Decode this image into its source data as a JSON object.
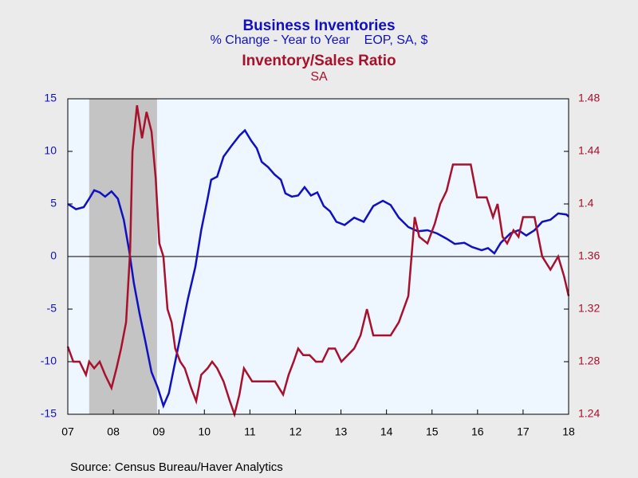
{
  "chart_data": {
    "type": "line",
    "series": [
      {
        "name": "Business Inventories",
        "subtitle": "% Change - Year to Year    EOP, SA, $",
        "color": "#1010c0",
        "axis": "y",
        "x": [
          2007.5,
          2007.68,
          2007.85,
          2007.97,
          2008.08,
          2008.2,
          2008.32,
          2008.46,
          2008.6,
          2008.73,
          2008.85,
          2008.95,
          2009.08,
          2009.2,
          2009.34,
          2009.48,
          2009.6,
          2009.72,
          2009.86,
          2010.0,
          2010.14,
          2010.3,
          2010.43,
          2010.57,
          2010.65,
          2010.78,
          2010.92,
          2011.09,
          2011.27,
          2011.39,
          2011.53,
          2011.65,
          2011.76,
          2011.9,
          2012.04,
          2012.18,
          2012.28,
          2012.42,
          2012.56,
          2012.7,
          2012.84,
          2012.98,
          2013.12,
          2013.26,
          2013.4,
          2013.58,
          2013.79,
          2014.0,
          2014.21,
          2014.42,
          2014.59,
          2014.77,
          2014.98,
          2015.19,
          2015.4,
          2015.61,
          2015.82,
          2016.0,
          2016.21,
          2016.38,
          2016.59,
          2016.73,
          2016.87,
          2017.01,
          2017.22,
          2017.4,
          2017.57,
          2017.75,
          2017.92,
          2018.1,
          2018.27,
          2018.45,
          2018.5
        ],
        "values": [
          5.0,
          4.5,
          4.7,
          5.5,
          6.3,
          6.1,
          5.7,
          6.2,
          5.5,
          3.5,
          0.5,
          -2.5,
          -5.5,
          -8,
          -11,
          -12.5,
          -14.2,
          -13,
          -10,
          -7,
          -4,
          -1,
          2.5,
          5.5,
          7.3,
          7.6,
          9.5,
          10.5,
          11.5,
          12,
          11,
          10.3,
          9.0,
          8.5,
          7.8,
          7.3,
          6.0,
          5.7,
          5.8,
          6.6,
          5.8,
          6.1,
          4.8,
          4.3,
          3.3,
          3.0,
          3.7,
          3.3,
          4.8,
          5.3,
          4.9,
          3.7,
          2.8,
          2.4,
          2.5,
          2.2,
          1.7,
          1.2,
          1.3,
          0.9,
          0.6,
          0.8,
          0.3,
          1.3,
          2.2,
          2.5,
          2.0,
          2.5,
          3.3,
          3.5,
          4.1,
          4.0,
          3.8
        ]
      },
      {
        "name": "Inventory/Sales Ratio",
        "subtitle": "SA",
        "color": "#a8102c",
        "axis": "y2",
        "x": [
          2007.5,
          2007.62,
          2007.76,
          2007.9,
          2007.97,
          2008.08,
          2008.2,
          2008.32,
          2008.46,
          2008.57,
          2008.67,
          2008.78,
          2008.87,
          2008.92,
          2009.02,
          2009.13,
          2009.23,
          2009.34,
          2009.43,
          2009.51,
          2009.6,
          2009.69,
          2009.78,
          2009.86,
          2009.97,
          2010.07,
          2010.21,
          2010.32,
          2010.43,
          2010.57,
          2010.67,
          2010.78,
          2010.92,
          2011.06,
          2011.16,
          2011.27,
          2011.37,
          2011.55,
          2011.7,
          2011.88,
          2012.05,
          2012.23,
          2012.35,
          2012.46,
          2012.56,
          2012.67,
          2012.81,
          2012.95,
          2013.09,
          2013.23,
          2013.37,
          2013.51,
          2013.65,
          2013.79,
          2013.93,
          2014.07,
          2014.21,
          2014.38,
          2014.59,
          2014.77,
          2014.98,
          2015.12,
          2015.22,
          2015.4,
          2015.56,
          2015.68,
          2015.82,
          2015.96,
          2016.14,
          2016.35,
          2016.49,
          2016.7,
          2016.84,
          2016.94,
          2017.05,
          2017.15,
          2017.29,
          2017.4,
          2017.5,
          2017.68,
          2017.75,
          2017.92,
          2018.1,
          2018.27,
          2018.4,
          2018.5
        ],
        "values": [
          1.2915,
          1.28,
          1.28,
          1.27,
          1.28,
          1.275,
          1.28,
          1.27,
          1.26,
          1.275,
          1.29,
          1.31,
          1.365,
          1.44,
          1.475,
          1.45,
          1.47,
          1.455,
          1.42,
          1.37,
          1.36,
          1.32,
          1.31,
          1.29,
          1.28,
          1.275,
          1.26,
          1.25,
          1.27,
          1.275,
          1.28,
          1.275,
          1.265,
          1.25,
          1.24,
          1.255,
          1.275,
          1.265,
          1.265,
          1.265,
          1.265,
          1.255,
          1.27,
          1.28,
          1.29,
          1.285,
          1.285,
          1.28,
          1.28,
          1.29,
          1.29,
          1.28,
          1.285,
          1.29,
          1.3,
          1.32,
          1.3,
          1.3,
          1.3,
          1.31,
          1.33,
          1.39,
          1.375,
          1.37,
          1.385,
          1.4,
          1.41,
          1.43,
          1.43,
          1.43,
          1.405,
          1.405,
          1.39,
          1.4,
          1.375,
          1.37,
          1.38,
          1.375,
          1.39,
          1.39,
          1.39,
          1.36,
          1.35,
          1.36,
          1.345,
          1.33
        ]
      }
    ],
    "xlim": [
      2007.5,
      2018.5
    ],
    "xticks": [
      {
        "value": 2007.5,
        "label": "07"
      },
      {
        "value": 2008.5,
        "label": "08"
      },
      {
        "value": 2009.5,
        "label": "09"
      },
      {
        "value": 2010.5,
        "label": "10"
      },
      {
        "value": 2011.5,
        "label": "11"
      },
      {
        "value": 2012.5,
        "label": "12"
      },
      {
        "value": 2013.5,
        "label": "13"
      },
      {
        "value": 2014.5,
        "label": "14"
      },
      {
        "value": 2015.5,
        "label": "15"
      },
      {
        "value": 2016.5,
        "label": "16"
      },
      {
        "value": 2017.5,
        "label": "17"
      },
      {
        "value": 2018.5,
        "label": "18"
      }
    ],
    "ylim": [
      -15,
      15
    ],
    "yticks": [
      -15,
      -10,
      -5,
      0,
      5,
      10,
      15
    ],
    "y2lim": [
      1.24,
      1.48
    ],
    "y2ticks": [
      1.24,
      1.28,
      1.32,
      1.36,
      1.4,
      1.44,
      1.48
    ],
    "recession": [
      2007.97,
      2009.46
    ],
    "source": "Source:  Census Bureau/Haver Analytics"
  }
}
